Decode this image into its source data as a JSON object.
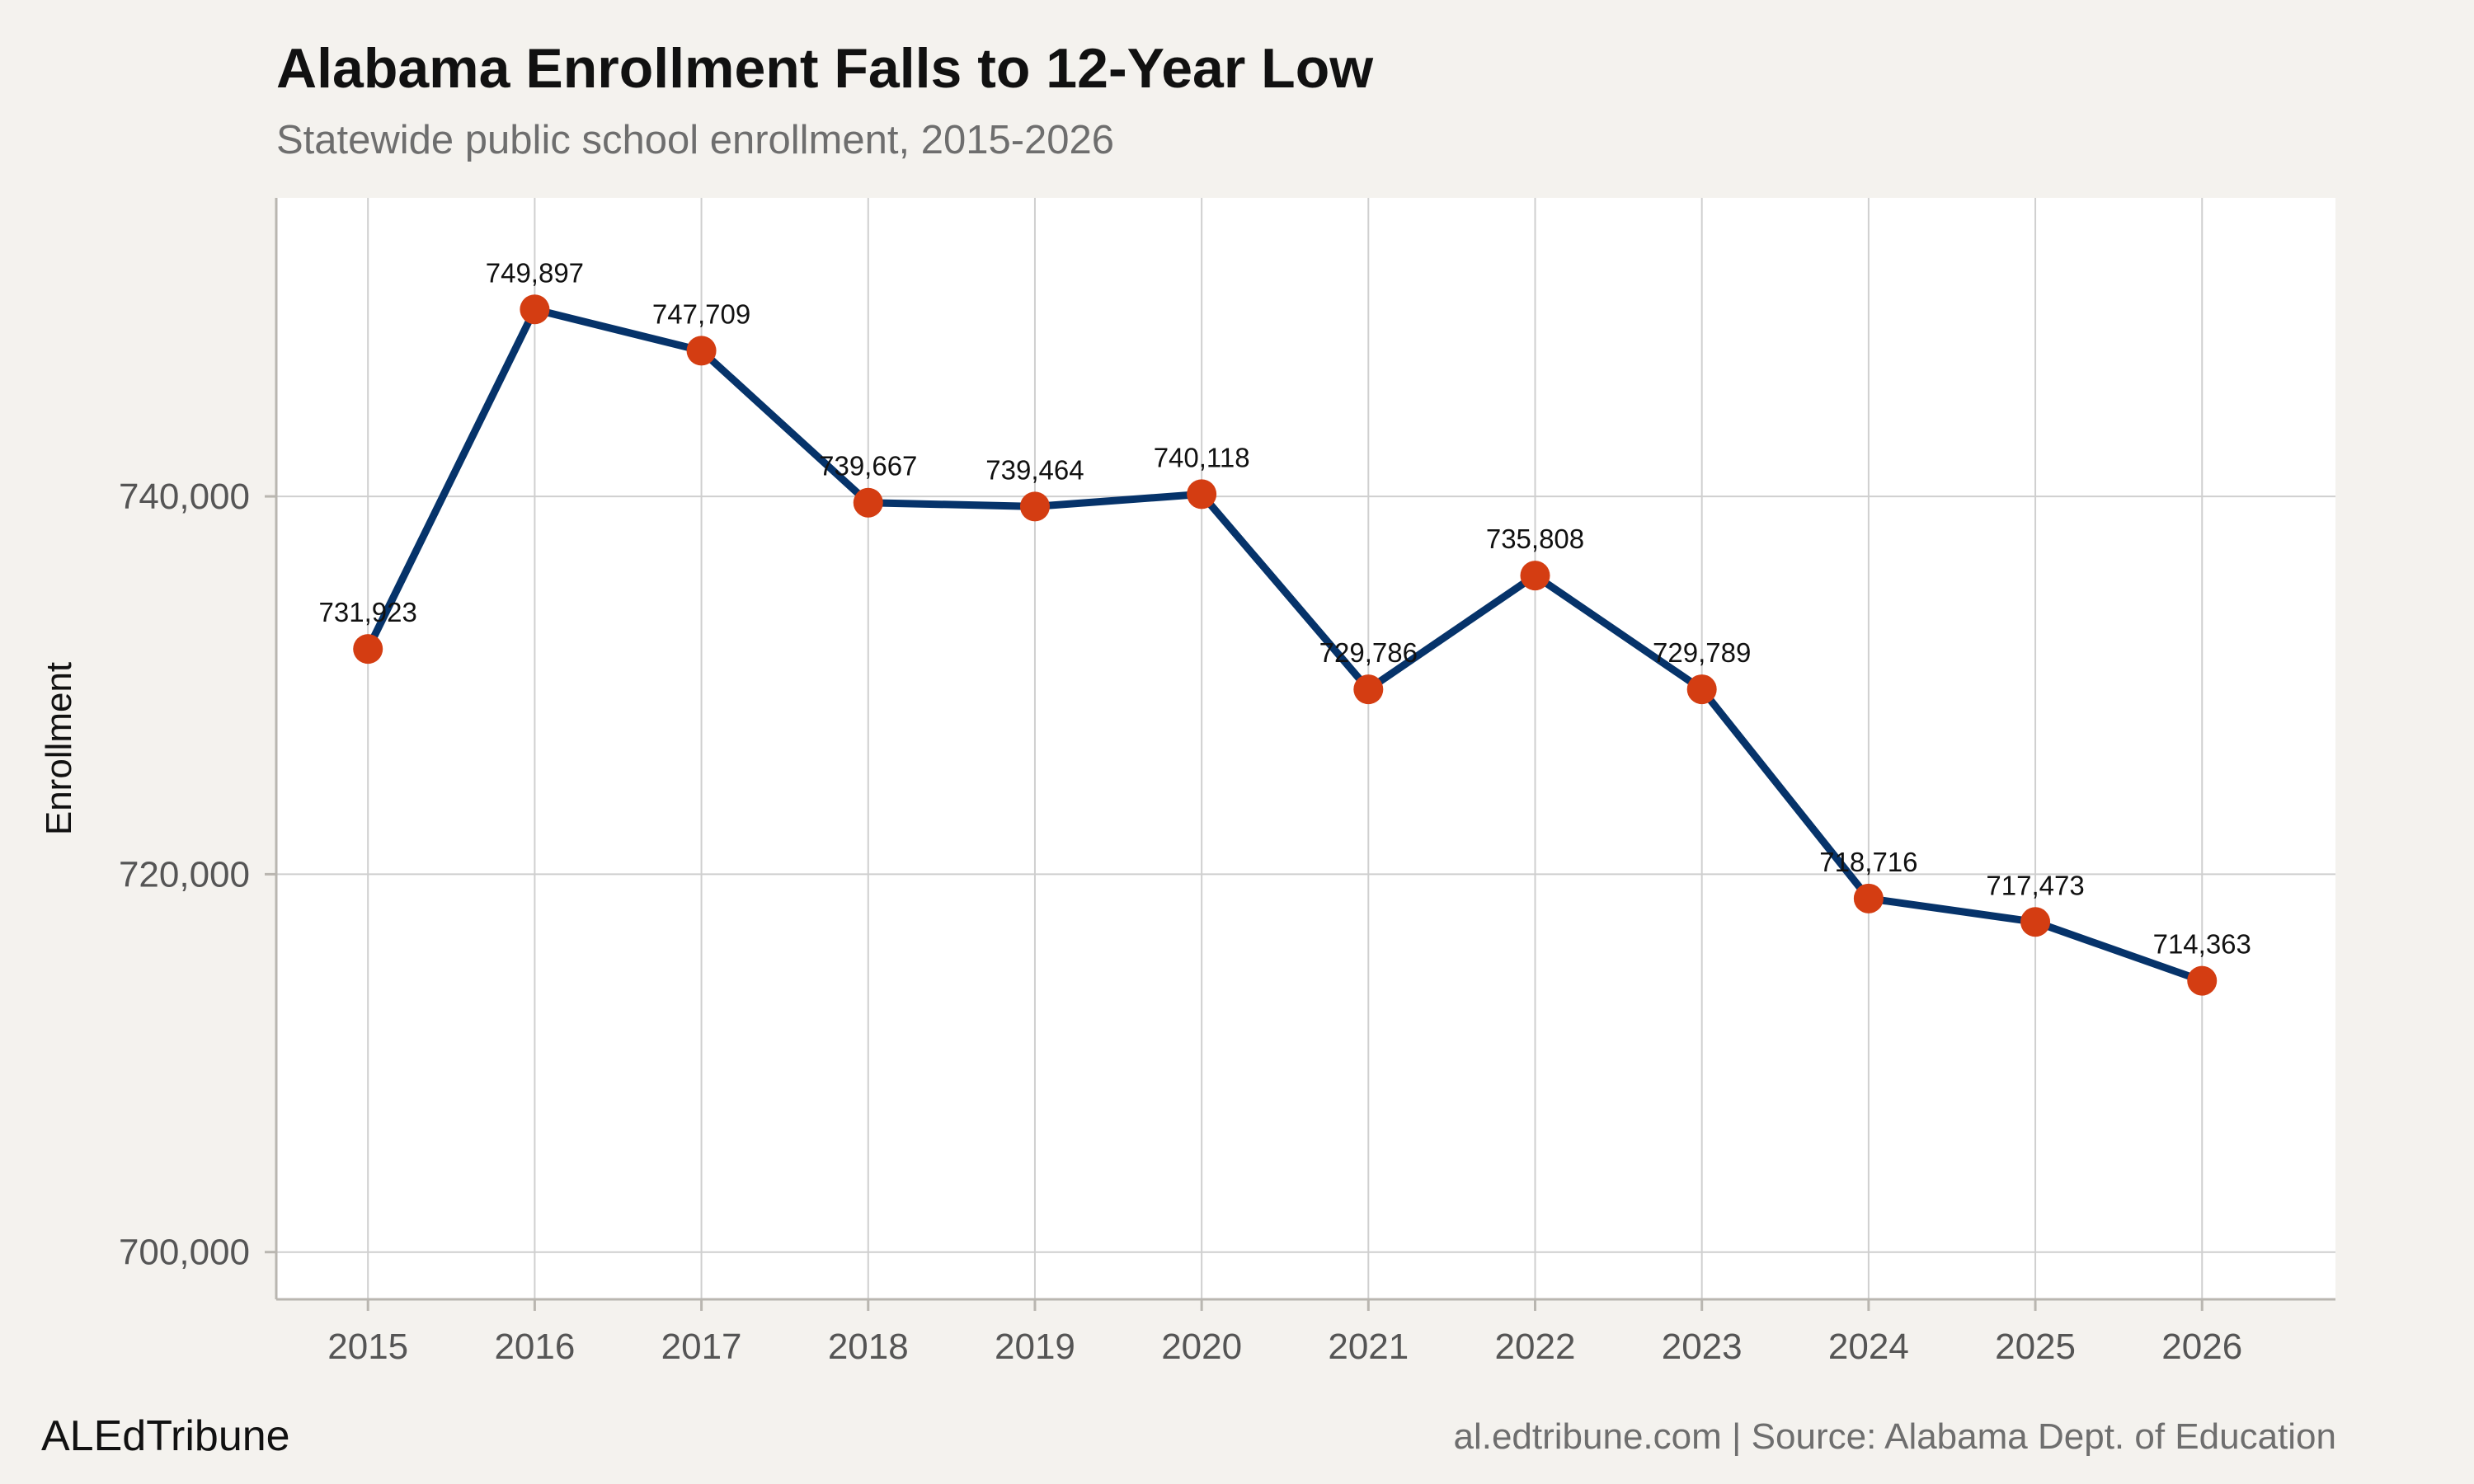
{
  "header": {
    "title": "Alabama Enrollment Falls to 12-Year Low",
    "subtitle": "Statewide public school enrollment, 2015-2026"
  },
  "footer": {
    "brand": "ALEdTribune",
    "source": "al.edtribune.com | Source: Alabama Dept. of Education"
  },
  "chart_data": {
    "type": "line",
    "title": "Alabama Enrollment Falls to 12-Year Low",
    "subtitle": "Statewide public school enrollment, 2015-2026",
    "xlabel": "",
    "ylabel": "Enrollment",
    "x": [
      2015,
      2016,
      2017,
      2018,
      2019,
      2020,
      2021,
      2022,
      2023,
      2024,
      2025,
      2026
    ],
    "values": [
      731923,
      749897,
      747709,
      739667,
      739464,
      740118,
      729786,
      735808,
      729789,
      718716,
      717473,
      714363
    ],
    "data_labels": [
      "731,923",
      "749,897",
      "747,709",
      "739,667",
      "739,464",
      "740,118",
      "729,786",
      "735,808",
      "729,789",
      "718,716",
      "717,473",
      "714,363"
    ],
    "x_tick_labels": [
      "2015",
      "2016",
      "2017",
      "2018",
      "2019",
      "2020",
      "2021",
      "2022",
      "2023",
      "2024",
      "2025",
      "2026"
    ],
    "y_ticks": [
      700000,
      720000,
      740000
    ],
    "y_tick_labels": [
      "700,000",
      "720,000",
      "740,000"
    ],
    "ylim": [
      697500,
      755800
    ],
    "xlim": [
      2014.45,
      2026.8
    ],
    "grid": true,
    "legend": "none",
    "colors": {
      "line": "#06336a",
      "marker": "#d43d12",
      "panel": "#ffffff",
      "background": "#f4f2ee",
      "grid": "#cfcfcf"
    }
  }
}
